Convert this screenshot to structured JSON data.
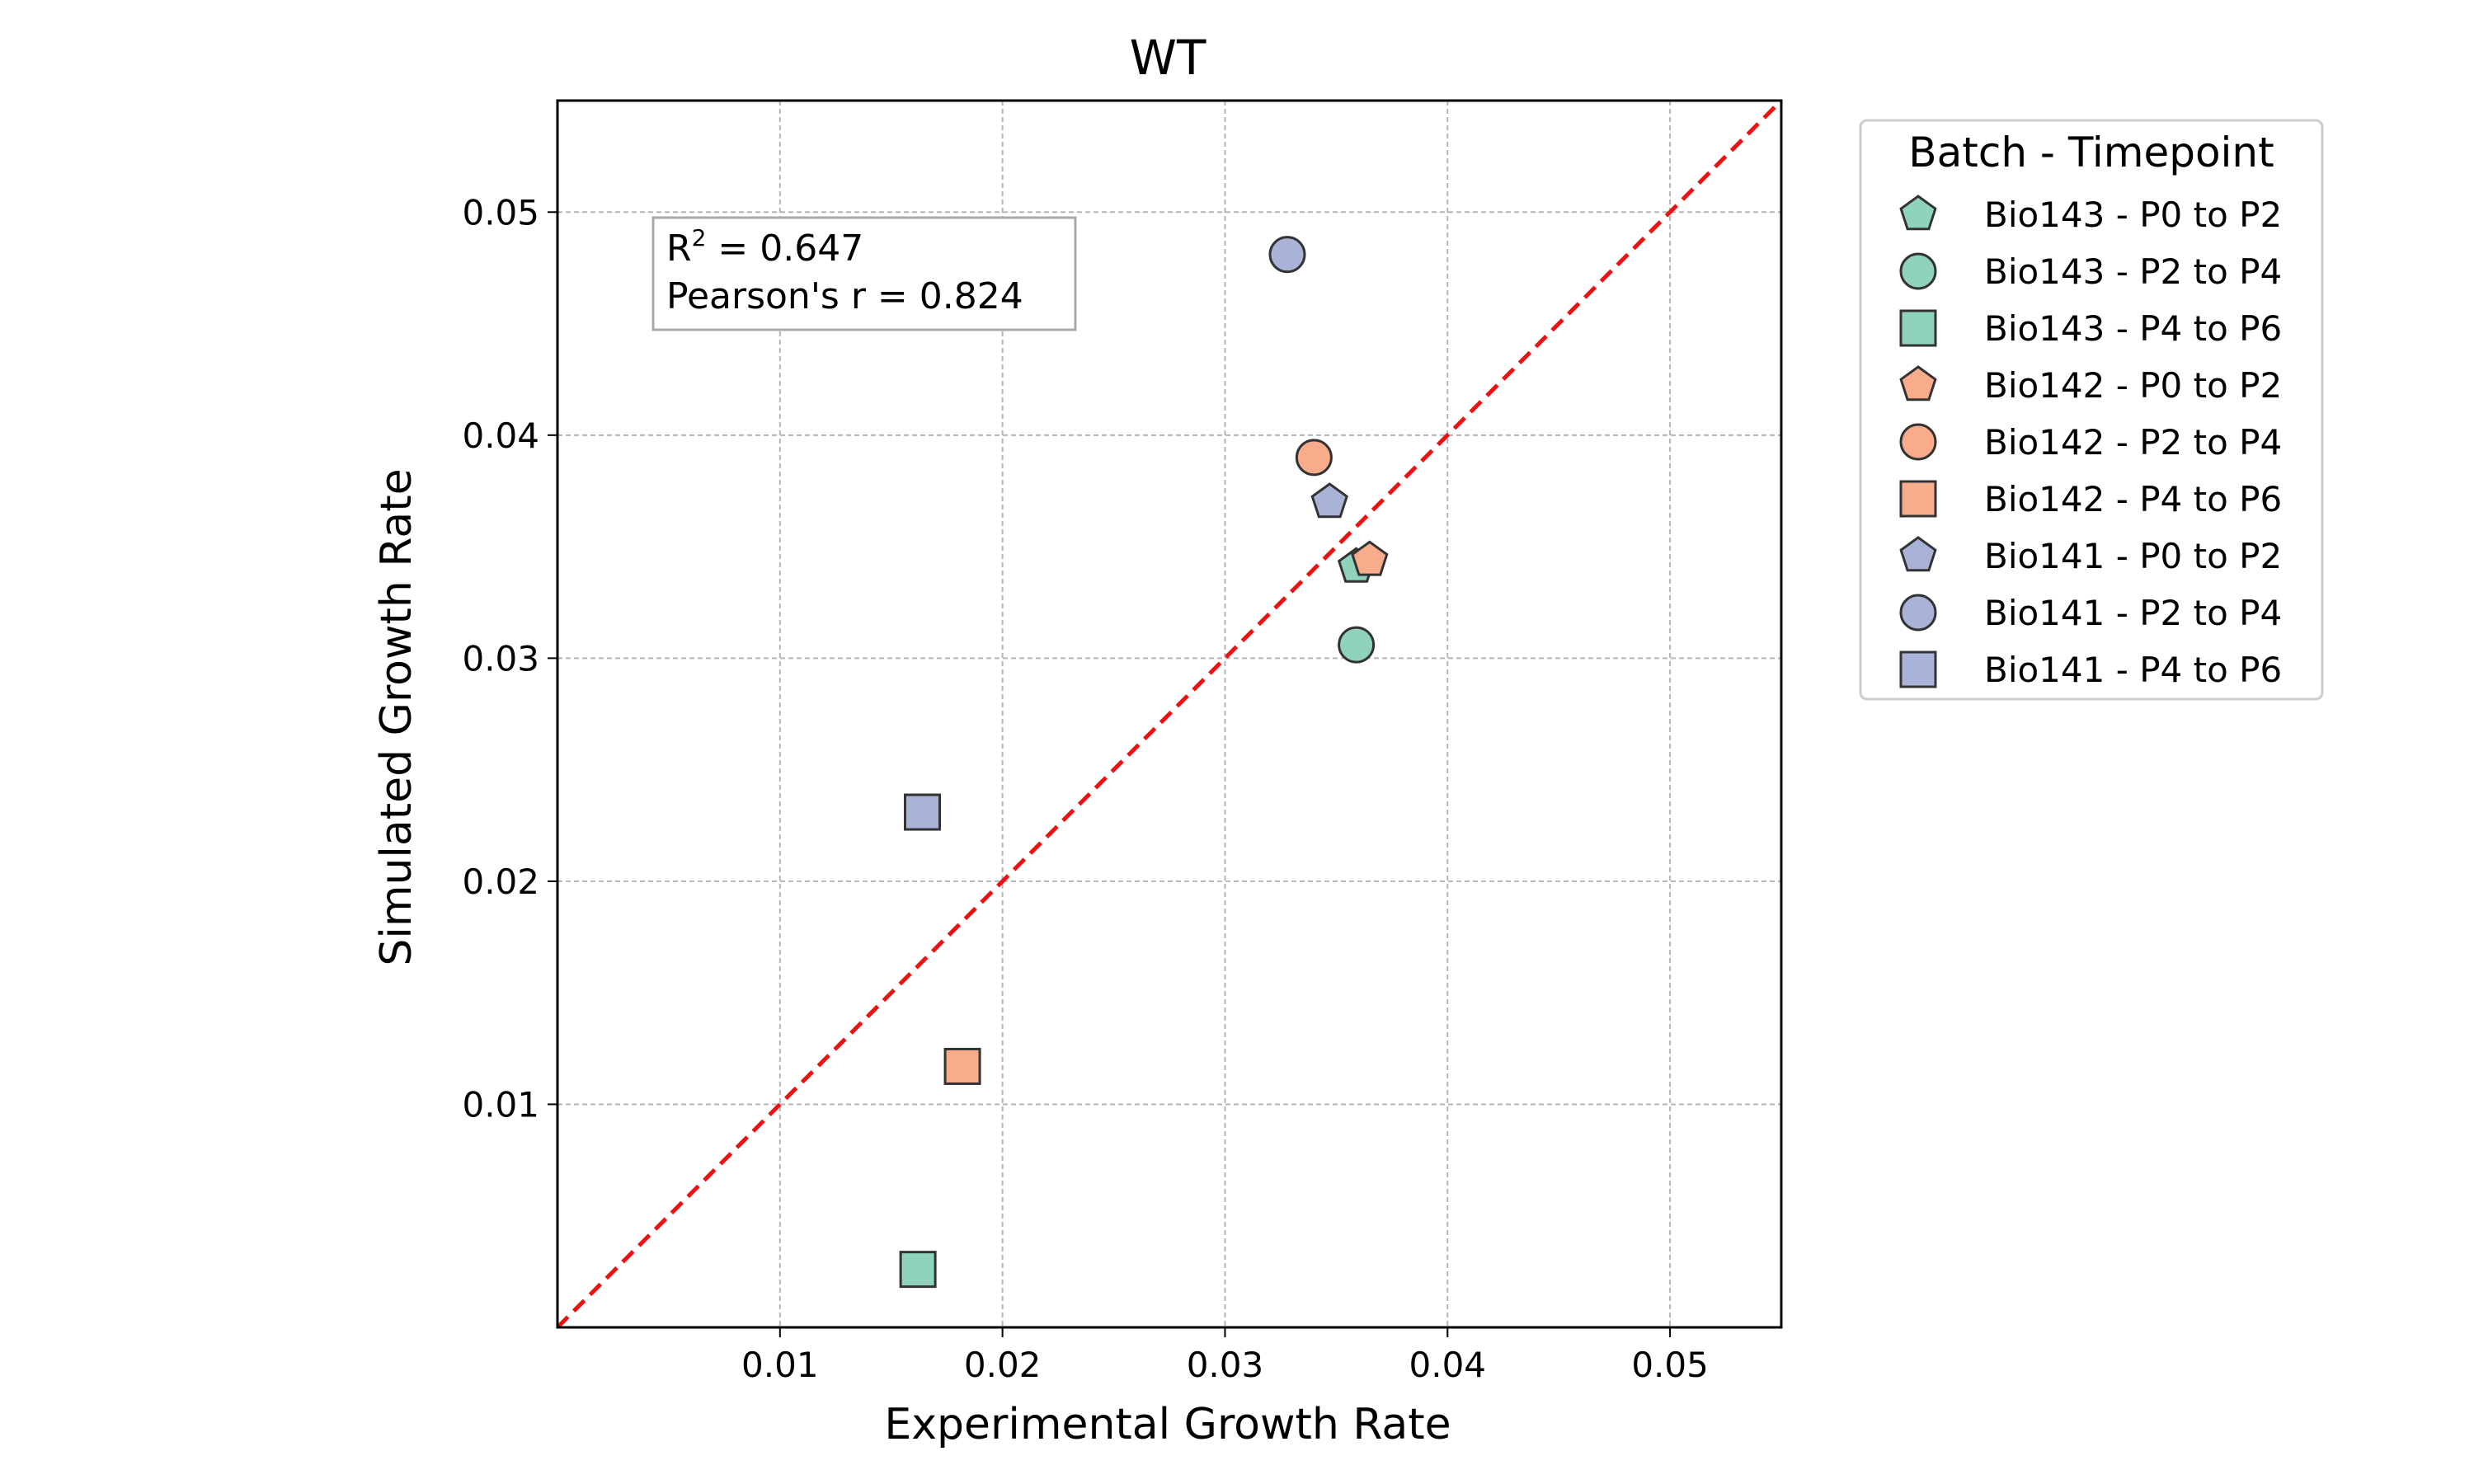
{
  "chart_data": {
    "type": "scatter",
    "title": "WT",
    "xlabel": "Experimental Growth Rate",
    "ylabel": "Simulated Growth Rate",
    "xlim": [
      0,
      0.055
    ],
    "ylim": [
      0,
      0.055
    ],
    "xticks": [
      "0.01",
      "0.02",
      "0.03",
      "0.04",
      "0.05"
    ],
    "yticks": [
      "0.01",
      "0.02",
      "0.03",
      "0.04",
      "0.05"
    ],
    "grid": true,
    "reference_line": {
      "type": "y=x",
      "style": "dashed",
      "color": "#ee1111"
    },
    "annotation": {
      "r2_prefix": "R",
      "r2_sup": "2",
      "r2_value": " = 0.647",
      "pearson": "Pearson's r = 0.824"
    },
    "legend": {
      "title": "Batch - Timepoint",
      "placement": "outside-right"
    },
    "colors": {
      "Bio143": "#8fd3bc",
      "Bio142": "#f9ac8c",
      "Bio141": "#a9b3d8"
    },
    "series": [
      {
        "name": "Bio143 - P0 to P2",
        "batch": "Bio143",
        "marker": "pentagon",
        "points": [
          [
            0.0359,
            0.0341
          ]
        ]
      },
      {
        "name": "Bio143 - P2 to P4",
        "batch": "Bio143",
        "marker": "circle",
        "points": [
          [
            0.0359,
            0.0306
          ]
        ]
      },
      {
        "name": "Bio143 - P4 to P6",
        "batch": "Bio143",
        "marker": "square",
        "points": [
          [
            0.0162,
            0.0026
          ]
        ]
      },
      {
        "name": "Bio142 - P0 to P2",
        "batch": "Bio142",
        "marker": "pentagon",
        "points": [
          [
            0.0365,
            0.0344
          ]
        ]
      },
      {
        "name": "Bio142 - P2 to P4",
        "batch": "Bio142",
        "marker": "circle",
        "points": [
          [
            0.034,
            0.039
          ]
        ]
      },
      {
        "name": "Bio142 - P4 to P6",
        "batch": "Bio142",
        "marker": "square",
        "points": [
          [
            0.0182,
            0.0117
          ]
        ]
      },
      {
        "name": "Bio141 - P0 to P2",
        "batch": "Bio141",
        "marker": "pentagon",
        "points": [
          [
            0.0347,
            0.037
          ]
        ]
      },
      {
        "name": "Bio141 - P2 to P4",
        "batch": "Bio141",
        "marker": "circle",
        "points": [
          [
            0.0328,
            0.0481
          ]
        ]
      },
      {
        "name": "Bio141 - P4 to P6",
        "batch": "Bio141",
        "marker": "square",
        "points": [
          [
            0.0164,
            0.0231
          ]
        ]
      }
    ]
  }
}
